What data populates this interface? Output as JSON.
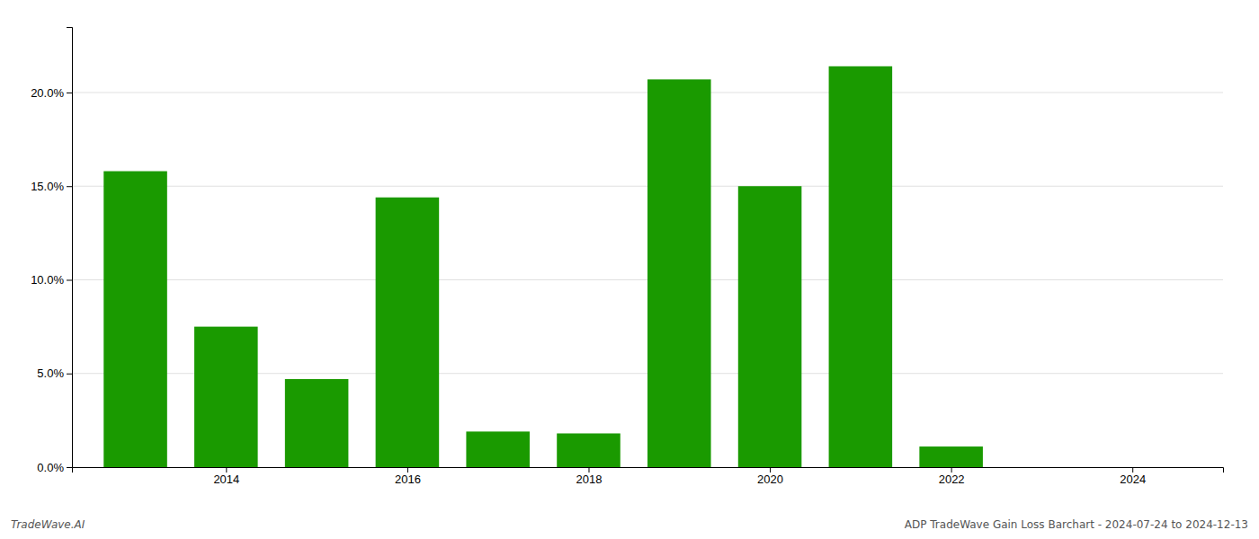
{
  "chart_data": {
    "type": "bar",
    "x": [
      2013,
      2014,
      2015,
      2016,
      2017,
      2018,
      2019,
      2020,
      2021,
      2022,
      2023
    ],
    "values": [
      0.158,
      0.075,
      0.047,
      0.144,
      0.019,
      0.018,
      0.207,
      0.15,
      0.214,
      0.011,
      0.0
    ],
    "color": "#1a9a00",
    "xlim": [
      2012.3,
      2025.0
    ],
    "xticks": [
      2014,
      2016,
      2018,
      2020,
      2022,
      2024
    ],
    "ylim": [
      0,
      0.235
    ],
    "yticks": [
      {
        "value": 0.0,
        "label": "0.0%"
      },
      {
        "value": 0.05,
        "label": "5.0%"
      },
      {
        "value": 0.1,
        "label": "10.0%"
      },
      {
        "value": 0.15,
        "label": "15.0%"
      },
      {
        "value": 0.2,
        "label": "20.0%"
      }
    ],
    "grid": true,
    "annotations": [
      "TradeWave.AI",
      "ADP TradeWave Gain Loss Barchart - 2024-07-24 to 2024-12-13"
    ]
  }
}
